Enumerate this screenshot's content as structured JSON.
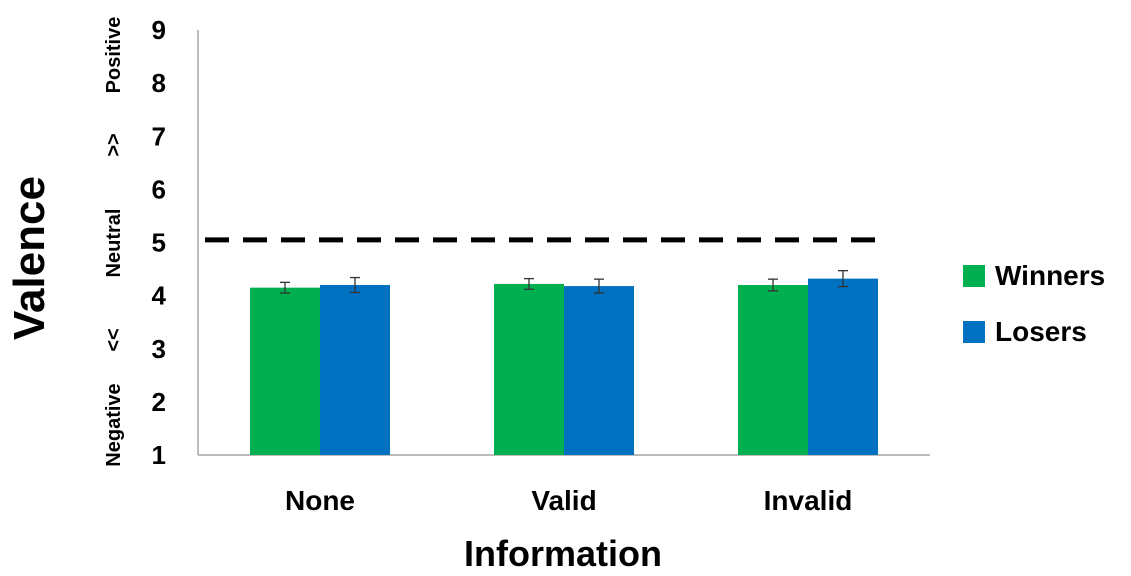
{
  "chart_data": {
    "type": "bar",
    "categories": [
      "None",
      "Valid",
      "Invalid"
    ],
    "series": [
      {
        "name": "Winners",
        "values": [
          4.15,
          4.22,
          4.2
        ],
        "errors": [
          0.1,
          0.1,
          0.11
        ],
        "color": "#00b050"
      },
      {
        "name": "Losers",
        "values": [
          4.2,
          4.18,
          4.32
        ],
        "errors": [
          0.14,
          0.13,
          0.15
        ],
        "color": "#0070c0"
      }
    ],
    "xlabel": "Information",
    "ylabel": "Valence",
    "ylim": [
      1,
      9
    ],
    "yticks": [
      "1",
      "2",
      "3",
      "4",
      "5",
      "6",
      "7",
      "8",
      "9"
    ],
    "reference_line": {
      "value": 5.05,
      "style": "dashed"
    },
    "side_labels": [
      "Negative",
      "<<",
      "Neutral",
      ">>",
      "Positive"
    ],
    "legend_position": "right",
    "grid": false
  }
}
